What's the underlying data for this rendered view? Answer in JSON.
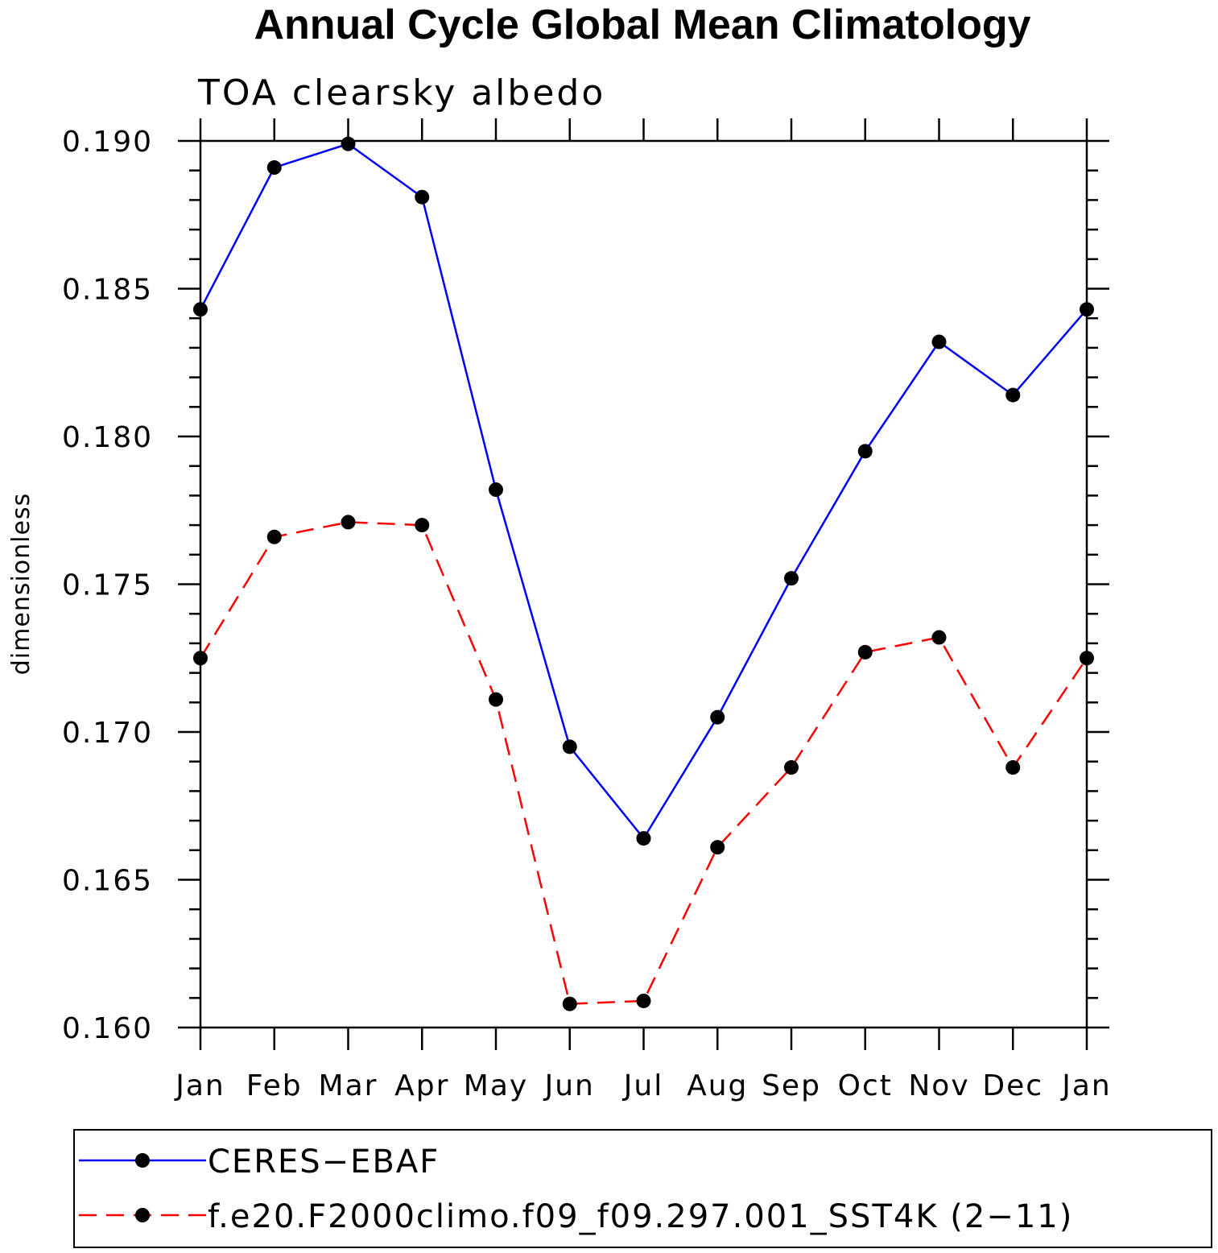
{
  "chart_data": {
    "type": "line",
    "title": "Annual Cycle Global Mean Climatology",
    "subtitle": "TOA clearsky albedo",
    "xlabel": "",
    "ylabel": "dimensionless",
    "categories": [
      "Jan",
      "Feb",
      "Mar",
      "Apr",
      "May",
      "Jun",
      "Jul",
      "Aug",
      "Sep",
      "Oct",
      "Nov",
      "Dec",
      "Jan"
    ],
    "ylim": [
      0.16,
      0.19
    ],
    "yticks": [
      "0.160",
      "0.165",
      "0.170",
      "0.175",
      "0.180",
      "0.185",
      "0.190"
    ],
    "ytick_values": [
      0.16,
      0.165,
      0.17,
      0.175,
      0.18,
      0.185,
      0.19
    ],
    "series": [
      {
        "name": "CERES−EBAF",
        "color": "#0000ff",
        "style": "solid",
        "marker": "dot",
        "values": [
          0.1843,
          0.1891,
          0.1899,
          0.1881,
          0.1782,
          0.1695,
          0.1664,
          0.1705,
          0.1752,
          0.1795,
          0.1832,
          0.1814,
          0.1843
        ]
      },
      {
        "name": "f.e20.F2000climo.f09_f09.297.001_SST4K (2−11)",
        "color": "#ff0000",
        "style": "dashed",
        "marker": "dot",
        "values": [
          0.1725,
          0.1766,
          0.1771,
          0.177,
          0.1711,
          0.1608,
          0.1609,
          0.1661,
          0.1688,
          0.1727,
          0.1732,
          0.1688,
          0.1725
        ]
      }
    ],
    "legend": "bottom"
  }
}
